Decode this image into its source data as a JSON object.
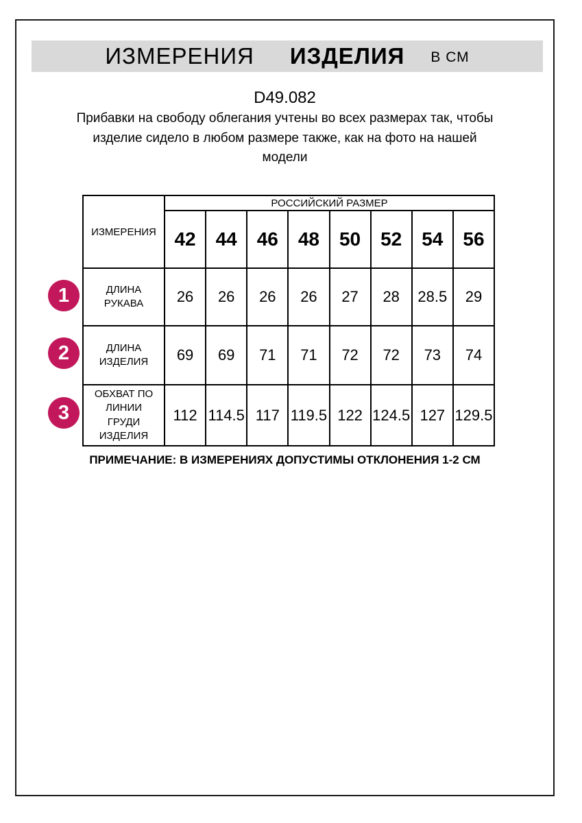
{
  "header": {
    "title_part1": "ИЗМЕРЕНИЯ",
    "title_part2": "ИЗДЕЛИЯ",
    "title_part3": "В СМ"
  },
  "product": {
    "code": "D49.082",
    "description": "Прибавки на свободу облегания учтены во всех размерах так, чтобы изделие сидело в любом размере также, как на фото на нашей модели"
  },
  "table": {
    "measure_col_header": "ИЗМЕРЕНИЯ",
    "size_group_header": "РОССИЙСКИЙ РАЗМЕР",
    "sizes": [
      "42",
      "44",
      "46",
      "48",
      "50",
      "52",
      "54",
      "56"
    ],
    "rows": [
      {
        "num": "1",
        "label": "ДЛИНА РУКАВА",
        "values": [
          "26",
          "26",
          "26",
          "26",
          "27",
          "28",
          "28.5",
          "29"
        ]
      },
      {
        "num": "2",
        "label": "ДЛИНА ИЗДЕЛИЯ",
        "values": [
          "69",
          "69",
          "71",
          "71",
          "72",
          "72",
          "73",
          "74"
        ]
      },
      {
        "num": "3",
        "label": "ОБХВАТ ПО ЛИНИИ ГРУДИ ИЗДЕЛИЯ",
        "values": [
          "112",
          "114.5",
          "117",
          "119.5",
          "122",
          "124.5",
          "127",
          "129.5"
        ]
      }
    ]
  },
  "note": "ПРИМЕЧАНИЕ: В ИЗМЕРЕНИЯХ ДОПУСТИМЫ ОТКЛОНЕНИЯ 1-2 СМ",
  "colors": {
    "badge": "#c2185b",
    "header_band_bg": "#d9d9d9",
    "border": "#000000"
  }
}
